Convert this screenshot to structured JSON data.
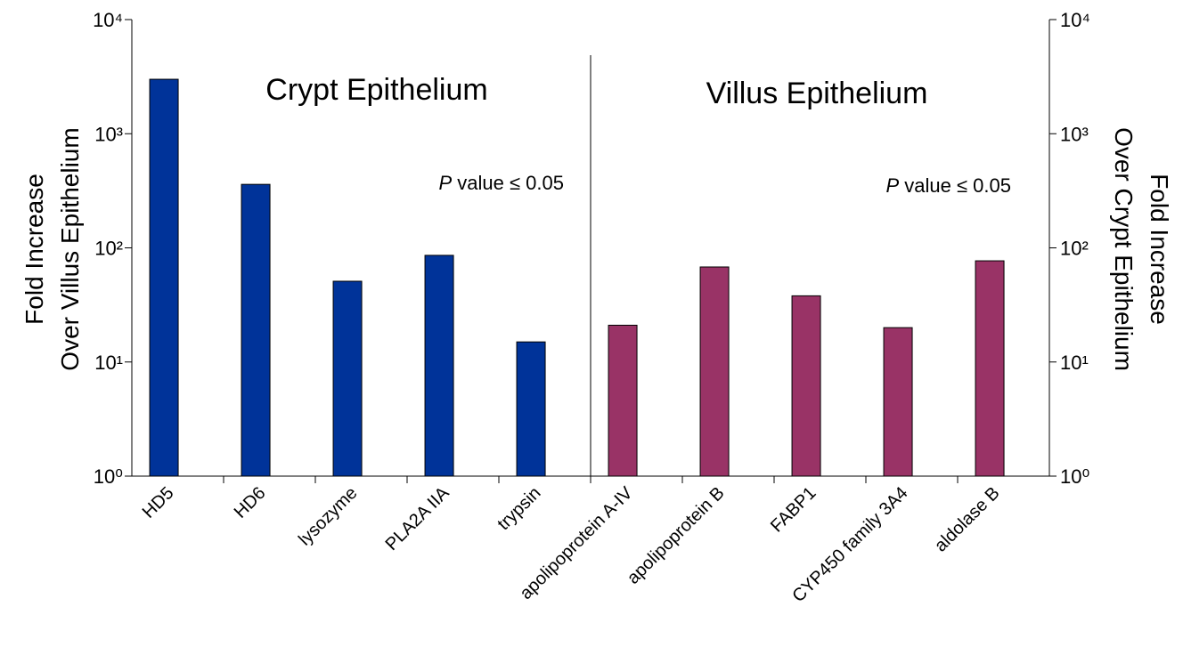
{
  "chart_data": {
    "type": "bar",
    "categories": [
      "HD5",
      "HD6",
      "lysozyme",
      "PLA2A IIA",
      "trypsin",
      "apolipoprotein A-IV",
      "apolipoprotein B",
      "FABP1",
      "CYP450 family 3A4",
      "aldolase B"
    ],
    "values": [
      3000,
      360,
      51,
      86,
      15,
      21,
      68,
      38,
      20,
      77
    ],
    "colors": [
      "#003399",
      "#003399",
      "#003399",
      "#003399",
      "#003399",
      "#993366",
      "#993366",
      "#993366",
      "#993366",
      "#993366"
    ],
    "log_scale": true,
    "ylim": [
      1,
      10000
    ],
    "yticks": [
      {
        "value": 1,
        "label": "10⁰"
      },
      {
        "value": 10,
        "label": "10¹"
      },
      {
        "value": 100,
        "label": "10²"
      },
      {
        "value": 1000,
        "label": "10³"
      },
      {
        "value": 10000,
        "label": "10⁴"
      }
    ],
    "y2lim": [
      1,
      10000
    ],
    "y2ticks": [
      {
        "value": 1,
        "label": "10⁰"
      },
      {
        "value": 10,
        "label": "10¹"
      },
      {
        "value": 100,
        "label": "10²"
      },
      {
        "value": 1000,
        "label": "10³"
      },
      {
        "value": 10000,
        "label": "10⁴"
      }
    ],
    "ylabel": [
      "Fold Increase",
      "Over Villus Epithelium"
    ],
    "y2label": [
      "Fold Increase",
      "Over Crypt Epithelium"
    ],
    "annotations": [
      {
        "text": "Crypt Epithelium"
      },
      {
        "text": "Villus Epithelium"
      },
      {
        "italic": "P",
        "text": "value ≤ 0.05"
      },
      {
        "italic": "P",
        "text": "value ≤ 0.05"
      }
    ]
  }
}
